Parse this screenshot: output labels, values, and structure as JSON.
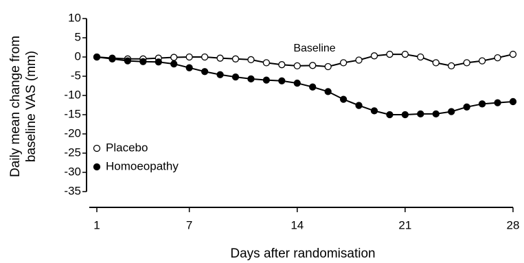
{
  "chart_data": {
    "type": "line",
    "ylabel": [
      "Daily mean change from",
      "baseline VAS (mm)"
    ],
    "xlabel": "Days after randomisation",
    "annotation": "Baseline",
    "x": [
      1,
      2,
      3,
      4,
      5,
      6,
      7,
      8,
      9,
      10,
      11,
      12,
      13,
      14,
      15,
      16,
      17,
      18,
      19,
      20,
      21,
      22,
      23,
      24,
      25,
      26,
      27,
      28
    ],
    "series": [
      {
        "name": "Placebo",
        "color": "#000000",
        "marker": "open",
        "values": [
          0,
          -0.3,
          -0.5,
          -0.5,
          -0.3,
          -0.1,
          0,
          0,
          -0.3,
          -0.5,
          -0.7,
          -1.5,
          -2,
          -2.3,
          -2.2,
          -2.5,
          -1.5,
          -0.8,
          0.3,
          0.7,
          0.7,
          0,
          -1.5,
          -2.3,
          -1.5,
          -1,
          -0.2,
          0.7
        ]
      },
      {
        "name": "Homoeopathy",
        "color": "#000000",
        "marker": "filled",
        "values": [
          0,
          -0.5,
          -1,
          -1.2,
          -1.3,
          -1.8,
          -2.8,
          -3.8,
          -4.6,
          -5.2,
          -5.7,
          -6,
          -6.2,
          -6.8,
          -7.8,
          -9,
          -11,
          -12.6,
          -14,
          -15,
          -15,
          -14.8,
          -14.8,
          -14.2,
          -13,
          -12.2,
          -11.9,
          -11.6
        ]
      }
    ],
    "xlim": [
      1,
      28
    ],
    "xticks": [
      1,
      7,
      14,
      21,
      28
    ],
    "ylim": [
      -35,
      10
    ],
    "yticks": [
      10,
      5,
      0,
      -5,
      -10,
      -15,
      -20,
      -25,
      -30,
      -35
    ],
    "legend": "lower-left"
  }
}
